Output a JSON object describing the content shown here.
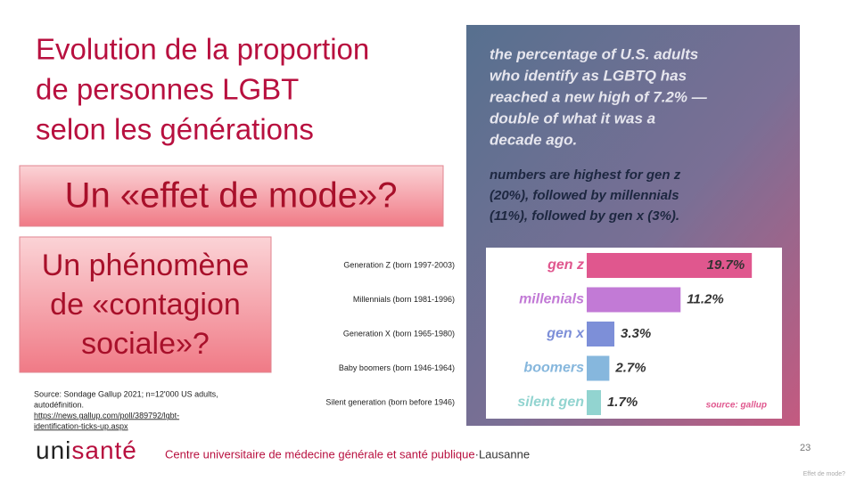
{
  "slide": {
    "title_lines": [
      "Evolution de la proportion",
      "de personnes LGBT",
      "selon les générations"
    ],
    "box1": "Un «effet de mode»?",
    "box2_lines": [
      "Un phénomène",
      "de «contagion",
      "sociale»?"
    ],
    "source_lines": [
      "Source: Sondage Gallup 2021; n=12'000 US adults,",
      "autodéfinition."
    ],
    "link_lines": [
      "https://news.gallup.com/poll/389792/lgbt-",
      "identification-ticks-up.aspx"
    ],
    "generation_labels": [
      "Generation Z (born 1997-2003)",
      "Millennials (born 1981-1996)",
      "Generation X (born 1965-1980)",
      "Baby boomers (born 1946-1964)",
      "Silent generation (born before 1946)"
    ],
    "logo_a": "uni",
    "logo_b": "santé",
    "institution": "Centre universitaire de médecine générale et santé publique",
    "city": "·Lausanne",
    "page_number": "23",
    "footer": "Effet de mode?"
  },
  "chart_data": {
    "type": "bar",
    "orientation": "horizontal",
    "headline_lines": [
      "the percentage of U.S. adults",
      "who identify as LGBTQ has",
      "reached a new high of 7.2% —",
      "double of what it was a",
      "decade ago."
    ],
    "subhead_lines": [
      "numbers are highest for gen z",
      "(20%), followed by millennials",
      "(11%), followed by gen x (3%)."
    ],
    "categories": [
      "gen z",
      "millenials",
      "gen x",
      "boomers",
      "silent gen"
    ],
    "values": [
      19.7,
      11.2,
      3.3,
      2.7,
      1.7
    ],
    "value_labels": [
      "19.7%",
      "11.2%",
      "3.3%",
      "2.7%",
      "1.7%"
    ],
    "colors": [
      "#e0578e",
      "#c27ad6",
      "#7d8fd8",
      "#86b7dd",
      "#92d4d0"
    ],
    "source": "source: gallup"
  }
}
